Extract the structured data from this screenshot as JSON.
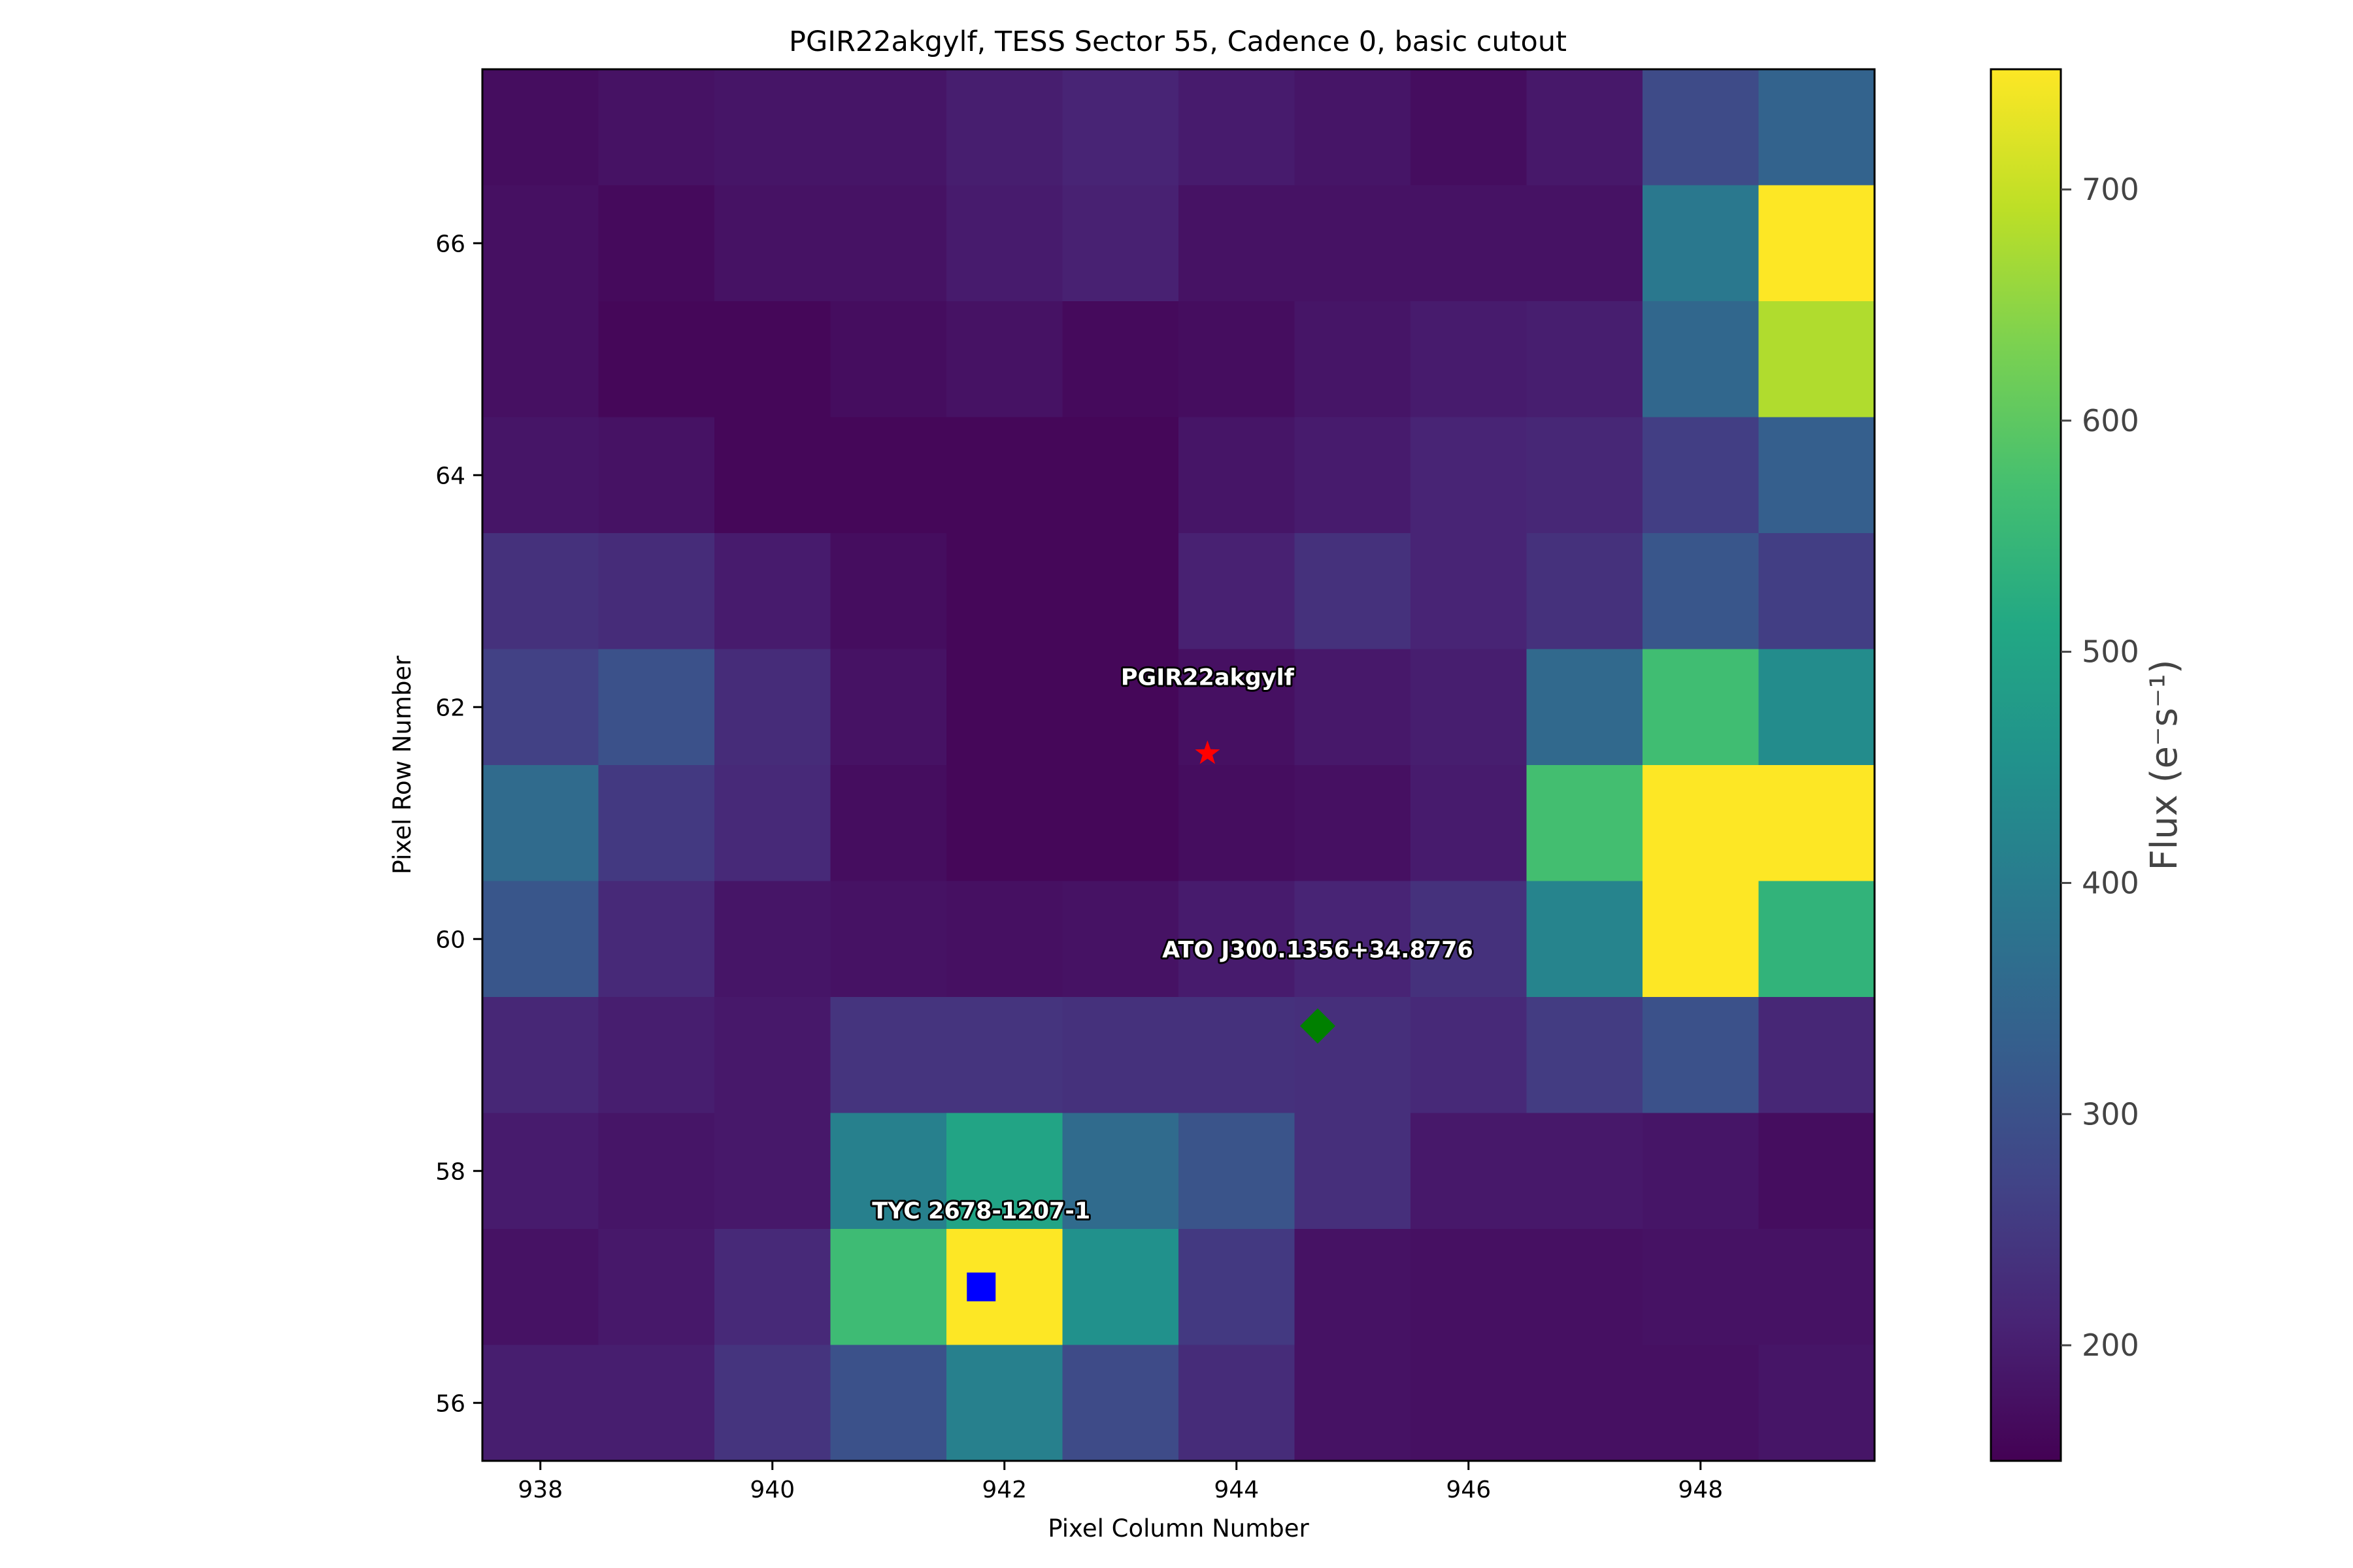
{
  "chart_data": {
    "type": "heatmap",
    "title": "PGIR22akgylf, TESS Sector 55, Cadence 0, basic cutout",
    "xlabel": "Pixel Column Number",
    "ylabel": "Pixel Row Number",
    "colorbar_label": "Flux (e⁻s⁻¹)",
    "colormap": "viridis",
    "vmin": 150,
    "vmax": 752,
    "x_start": 938,
    "y_start": 56,
    "xlim": [
      937.5,
      949.5
    ],
    "ylim": [
      55.5,
      67.5
    ],
    "xticks": [
      938,
      940,
      942,
      944,
      946,
      948
    ],
    "yticks": [
      56,
      58,
      60,
      62,
      64,
      66
    ],
    "colorbar_ticks": [
      200,
      300,
      400,
      500,
      600,
      700
    ],
    "grid": false,
    "rows_top_to_bottom": [
      [
        170,
        180,
        185,
        185,
        200,
        210,
        195,
        185,
        170,
        190,
        285,
        340
      ],
      [
        175,
        165,
        180,
        180,
        195,
        205,
        180,
        180,
        180,
        180,
        390,
        752
      ],
      [
        175,
        160,
        160,
        170,
        180,
        165,
        170,
        185,
        195,
        200,
        350,
        680
      ],
      [
        185,
        180,
        160,
        160,
        160,
        160,
        185,
        195,
        210,
        215,
        260,
        330
      ],
      [
        235,
        225,
        195,
        170,
        160,
        160,
        205,
        235,
        210,
        235,
        310,
        260
      ],
      [
        265,
        300,
        225,
        180,
        160,
        160,
        175,
        190,
        200,
        355,
        565,
        440
      ],
      [
        360,
        250,
        220,
        170,
        160,
        160,
        170,
        175,
        195,
        570,
        752,
        752
      ],
      [
        310,
        220,
        185,
        180,
        175,
        180,
        195,
        210,
        235,
        420,
        752,
        540
      ],
      [
        215,
        200,
        190,
        240,
        240,
        235,
        235,
        230,
        220,
        255,
        300,
        215
      ],
      [
        195,
        185,
        190,
        410,
        500,
        360,
        305,
        230,
        190,
        190,
        185,
        170
      ],
      [
        180,
        190,
        220,
        560,
        752,
        450,
        250,
        180,
        175,
        175,
        180,
        180
      ],
      [
        200,
        200,
        240,
        300,
        410,
        285,
        225,
        180,
        175,
        175,
        175,
        185
      ]
    ],
    "markers": [
      {
        "label": "PGIR22akgylf",
        "x": 943.75,
        "y": 61.6,
        "symbol": "star",
        "color": "#ff0000"
      },
      {
        "label": "ATO J300.1356+34.8776",
        "x": 944.7,
        "y": 59.25,
        "symbol": "diamond",
        "color": "#008000"
      },
      {
        "label": "TYC 2678-1207-1",
        "x": 941.8,
        "y": 57.0,
        "symbol": "square",
        "color": "#0000ff"
      }
    ]
  }
}
